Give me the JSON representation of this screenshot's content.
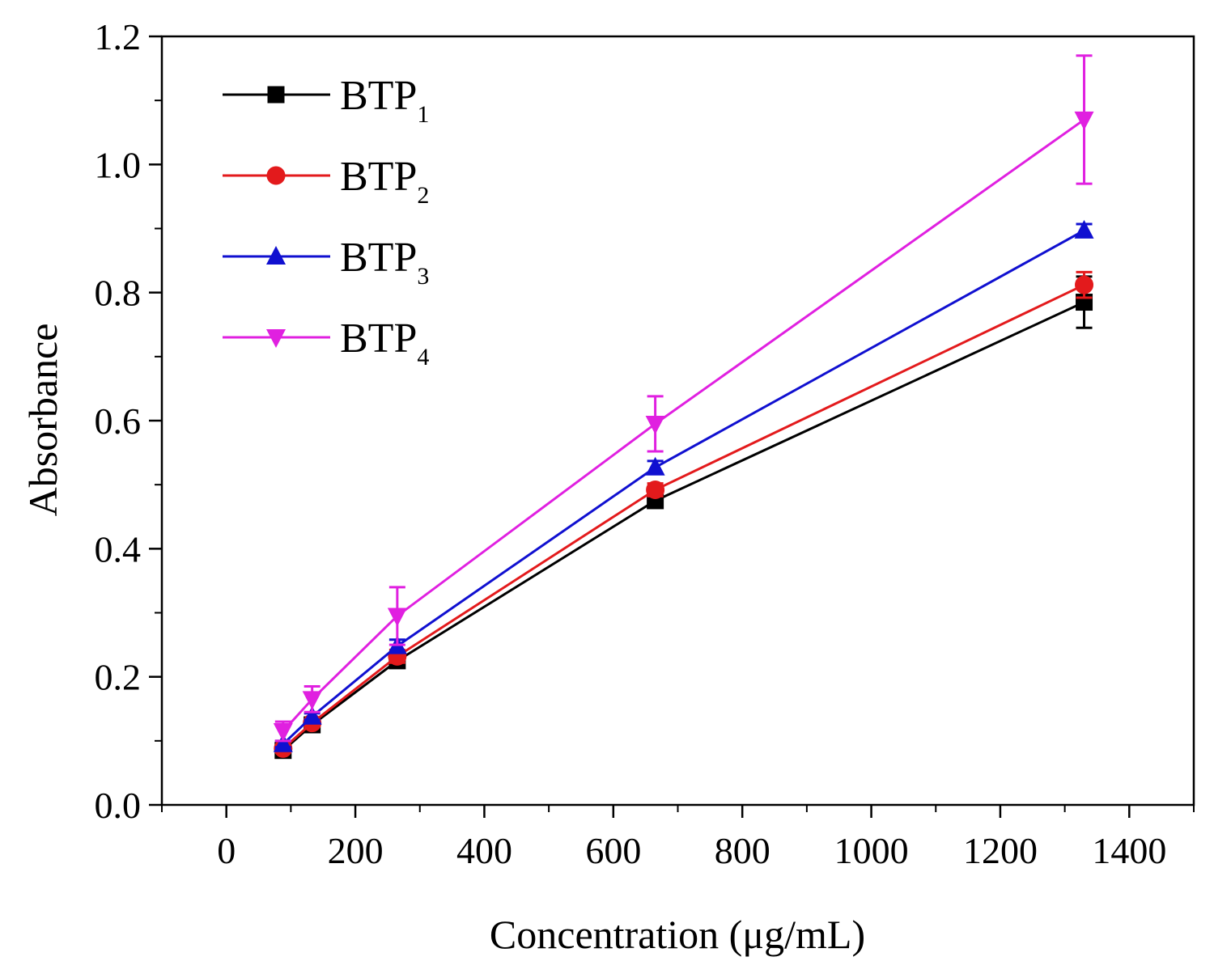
{
  "chart_data": {
    "type": "line",
    "title": "",
    "xlabel": "Concentration (μg/mL)",
    "ylabel": "Absorbance",
    "xlim": [
      -100,
      1500
    ],
    "ylim": [
      0.0,
      1.2
    ],
    "x_ticks": [
      0,
      200,
      400,
      600,
      800,
      1000,
      1200,
      1400
    ],
    "x_tick_labels": [
      "0",
      "200",
      "400",
      "600",
      "800",
      "1000",
      "1200",
      "1400"
    ],
    "y_ticks": [
      0.0,
      0.2,
      0.4,
      0.6,
      0.8,
      1.0,
      1.2
    ],
    "y_tick_labels": [
      "0.0",
      "0.2",
      "0.4",
      "0.6",
      "0.8",
      "1.0",
      "1.2"
    ],
    "grid": false,
    "legend_position": "top-left",
    "x": [
      88,
      133,
      265,
      665,
      1330
    ],
    "series": [
      {
        "name": "BTP",
        "subscript": "1",
        "color": "#000000",
        "marker": "square",
        "values": [
          0.085,
          0.125,
          0.225,
          0.475,
          0.785
        ],
        "errors": [
          0.005,
          0.005,
          0.01,
          0.01,
          0.04
        ]
      },
      {
        "name": "BTP",
        "subscript": "2",
        "color": "#e31a1c",
        "marker": "circle",
        "values": [
          0.088,
          0.128,
          0.232,
          0.492,
          0.812
        ],
        "errors": [
          0.005,
          0.005,
          0.01,
          0.01,
          0.02
        ]
      },
      {
        "name": "BTP",
        "subscript": "3",
        "color": "#1010d0",
        "marker": "triangle-up",
        "values": [
          0.095,
          0.138,
          0.248,
          0.527,
          0.897
        ],
        "errors": [
          0.005,
          0.005,
          0.01,
          0.01,
          0.01
        ]
      },
      {
        "name": "BTP",
        "subscript": "4",
        "color": "#e020e0",
        "marker": "triangle-down",
        "values": [
          0.115,
          0.165,
          0.295,
          0.595,
          1.07
        ],
        "errors": [
          0.015,
          0.02,
          0.045,
          0.043,
          0.1
        ]
      }
    ]
  }
}
